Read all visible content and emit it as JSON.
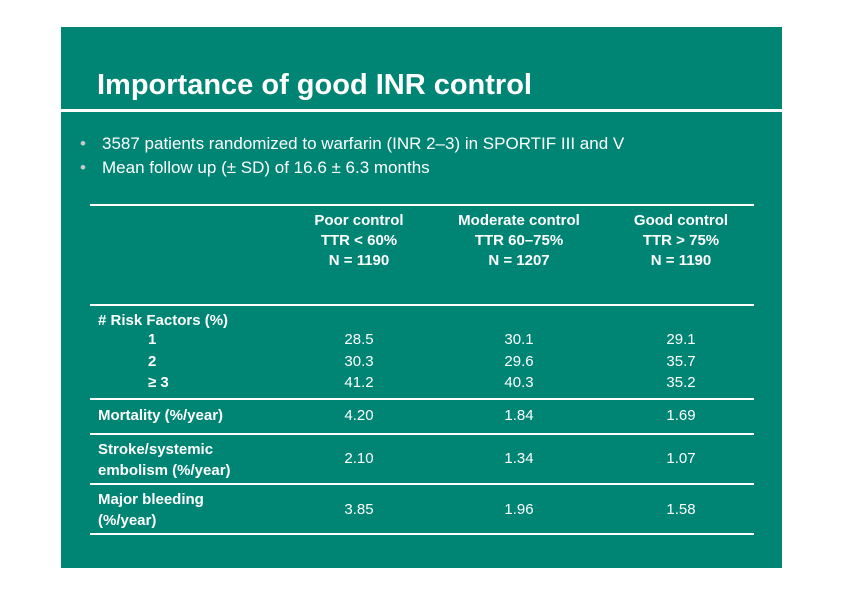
{
  "title": "Importance of good INR control",
  "bullets": [
    "3587 patients randomized to warfarin (INR 2–3) in SPORTIF III and V",
    "Mean follow up (± SD) of 16.6 ± 6.3 months"
  ],
  "table": {
    "columns": [
      {
        "line1": "Poor control",
        "line2": "TTR < 60%",
        "line3": "N = 1190"
      },
      {
        "line1": "Moderate control",
        "line2": "TTR 60–75%",
        "line3": "N = 1207"
      },
      {
        "line1": "Good control",
        "line2": "TTR > 75%",
        "line3": "N = 1190"
      }
    ],
    "risk_factors": {
      "label": "# Risk Factors (%)",
      "rows": [
        {
          "label": "1",
          "values": [
            "28.5",
            "30.1",
            "29.1"
          ]
        },
        {
          "label": "2",
          "values": [
            "30.3",
            "29.6",
            "35.7"
          ]
        },
        {
          "label": "≥ 3",
          "values": [
            "41.2",
            "40.3",
            "35.2"
          ]
        }
      ]
    },
    "mortality": {
      "label": "Mortality (%/year)",
      "values": [
        "4.20",
        "1.84",
        "1.69"
      ]
    },
    "stroke": {
      "label_line1": "Stroke/systemic",
      "label_line2": "embolism (%/year)",
      "values": [
        "2.10",
        "1.34",
        "1.07"
      ]
    },
    "bleeding": {
      "label_line1": "Major bleeding",
      "label_line2": "(%/year)",
      "values": [
        "3.85",
        "1.96",
        "1.58"
      ]
    }
  },
  "colors": {
    "background": "#008575",
    "text": "#ffffff",
    "bullet": "#c9c9c9"
  }
}
